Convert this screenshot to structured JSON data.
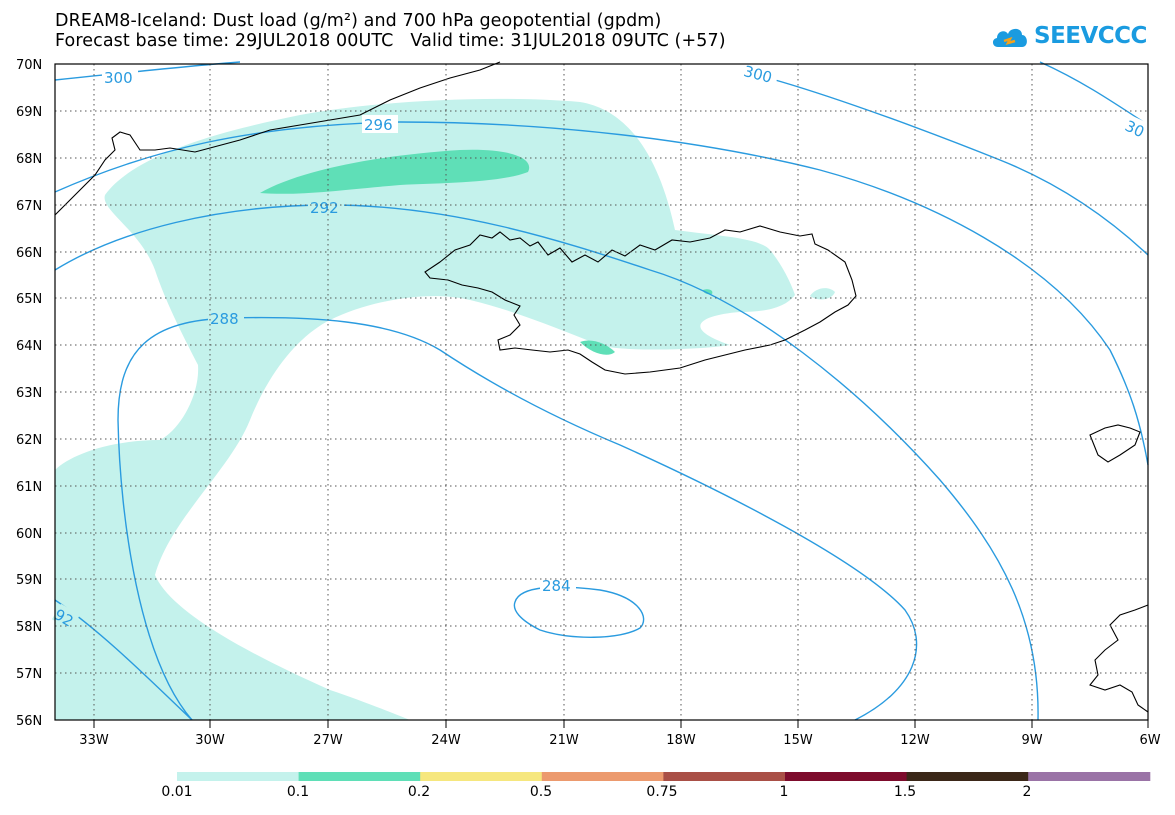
{
  "title": {
    "line1": "DREAM8-Iceland: Dust load (g/m²) and 700 hPa geopotential (gpdm)",
    "line2": "Forecast base time: 29JUL2018 00UTC   Valid time: 31JUL2018 09UTC (+57)"
  },
  "logo": {
    "text": "SEEVCCC",
    "icon": "cloud-icon"
  },
  "axes": {
    "lat_labels": [
      "70N",
      "69N",
      "68N",
      "67N",
      "66N",
      "65N",
      "64N",
      "63N",
      "62N",
      "61N",
      "60N",
      "59N",
      "58N",
      "57N",
      "56N"
    ],
    "lon_labels": [
      "33W",
      "30W",
      "27W",
      "24W",
      "21W",
      "18W",
      "15W",
      "12W",
      "9W",
      "6W"
    ],
    "lat_range": [
      56,
      70
    ],
    "lon_range": [
      -34.5,
      -6
    ]
  },
  "contours": {
    "color": "#2a9bdf",
    "labels": [
      "300",
      "300",
      "30",
      "296",
      "292",
      "288",
      "284",
      "92"
    ]
  },
  "colorbar": {
    "labels": [
      "0.01",
      "0.1",
      "0.2",
      "0.5",
      "0.75",
      "1",
      "1.5",
      "2"
    ],
    "colors": [
      "#c4f2ec",
      "#5fdfb7",
      "#f6e77e",
      "#ec9a6e",
      "#a94f46",
      "#7d0b2c",
      "#3b2718",
      "#9a73a6"
    ]
  },
  "colors": {
    "dust_light": "#c4f2ec",
    "dust_medium": "#5fdfb7"
  }
}
